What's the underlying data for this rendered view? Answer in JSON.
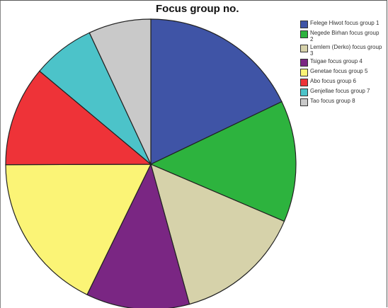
{
  "chart_data": {
    "type": "pie",
    "title": "Focus group no.",
    "legend_position": "top-right",
    "categories": [
      "Felege Hiwot focus group 1",
      "Negede Birhan focus group\n2",
      "Lemlem (Derko) focus group\n3",
      "Tsigae focus group 4",
      "Genetae focus group 5",
      "Abo focus group 6",
      "Genjellae focus group 7",
      "Tao focus group 8"
    ],
    "values": [
      18.8,
      14.2,
      15.0,
      12.1,
      18.6,
      11.7,
      7.3,
      7.3
    ],
    "colors": [
      "#3f54a6",
      "#2db33e",
      "#d6d2aa",
      "#7a2683",
      "#fbf476",
      "#ee3338",
      "#4cc3c9",
      "#c9c9c9"
    ]
  }
}
